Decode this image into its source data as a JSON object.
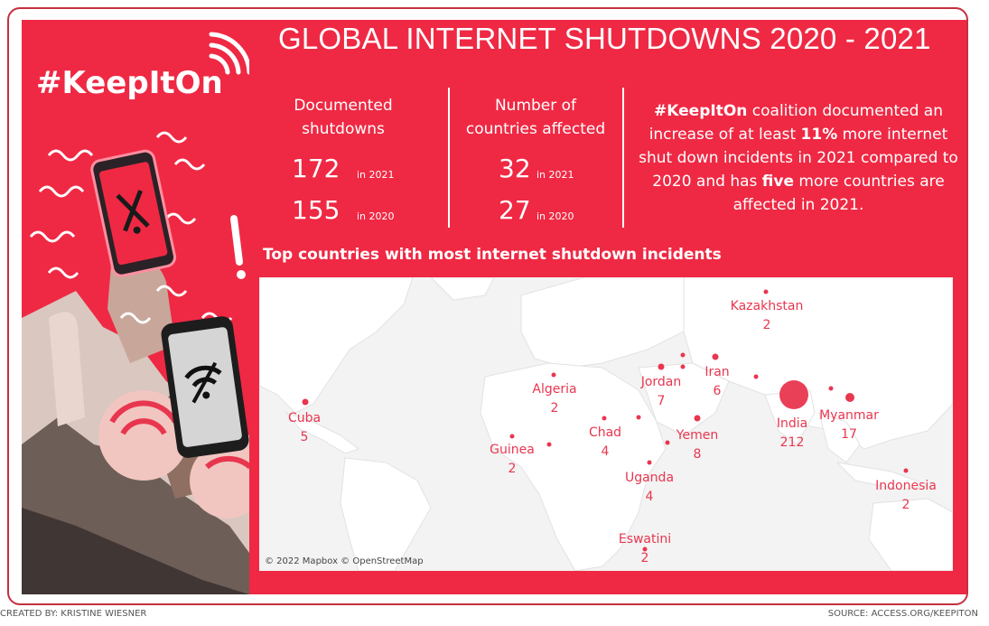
{
  "title": "GLOBAL INTERNET SHUTDOWNS 2020 - 2021",
  "logo_text": "#KeepItOn",
  "stats": {
    "documented": {
      "heading_line1": "Documented",
      "heading_line2": "shutdowns",
      "value_2021": "172",
      "label_2021": "in 2021",
      "value_2020": "155",
      "label_2020": "in 2020"
    },
    "countries": {
      "heading_line1": "Number of",
      "heading_line2": "countries affected",
      "value_2021": "32",
      "label_2021": "in 2021",
      "value_2020": "27",
      "label_2020": "in 2020"
    }
  },
  "summary": {
    "hashtag": "#KeepItOn",
    "part1": " coalition documented an increase of at least ",
    "percent": "11%",
    "part2": " more internet shut down incidents in 2021 compared to 2020 and has ",
    "five": "five",
    "part3": " more countries are affected in 2021."
  },
  "map": {
    "title": "Top countries with most internet shutdown incidents",
    "attribution": "© 2022 Mapbox © OpenStreetMap",
    "countries": [
      {
        "name": "Kazakhstan",
        "count": "2"
      },
      {
        "name": "Jordan",
        "count": "7"
      },
      {
        "name": "Iran",
        "count": "6"
      },
      {
        "name": "Algeria",
        "count": "2"
      },
      {
        "name": "Cuba",
        "count": "5"
      },
      {
        "name": "Chad",
        "count": "4"
      },
      {
        "name": "India",
        "count": "212"
      },
      {
        "name": "Myanmar",
        "count": "17"
      },
      {
        "name": "Yemen",
        "count": "8"
      },
      {
        "name": "Guinea",
        "count": "2"
      },
      {
        "name": "Uganda",
        "count": "4"
      },
      {
        "name": "Indonesia",
        "count": "2"
      },
      {
        "name": "Eswatini",
        "count": "2"
      }
    ]
  },
  "footer": {
    "credit": "CREATED BY: KRISTINE WIESNER",
    "source": "SOURCE:  ACCESS.ORG/KEEPITON"
  },
  "colors": {
    "panel": "#ef2944",
    "marker": "#e8364f",
    "map_bg": "#f4f4f4"
  }
}
